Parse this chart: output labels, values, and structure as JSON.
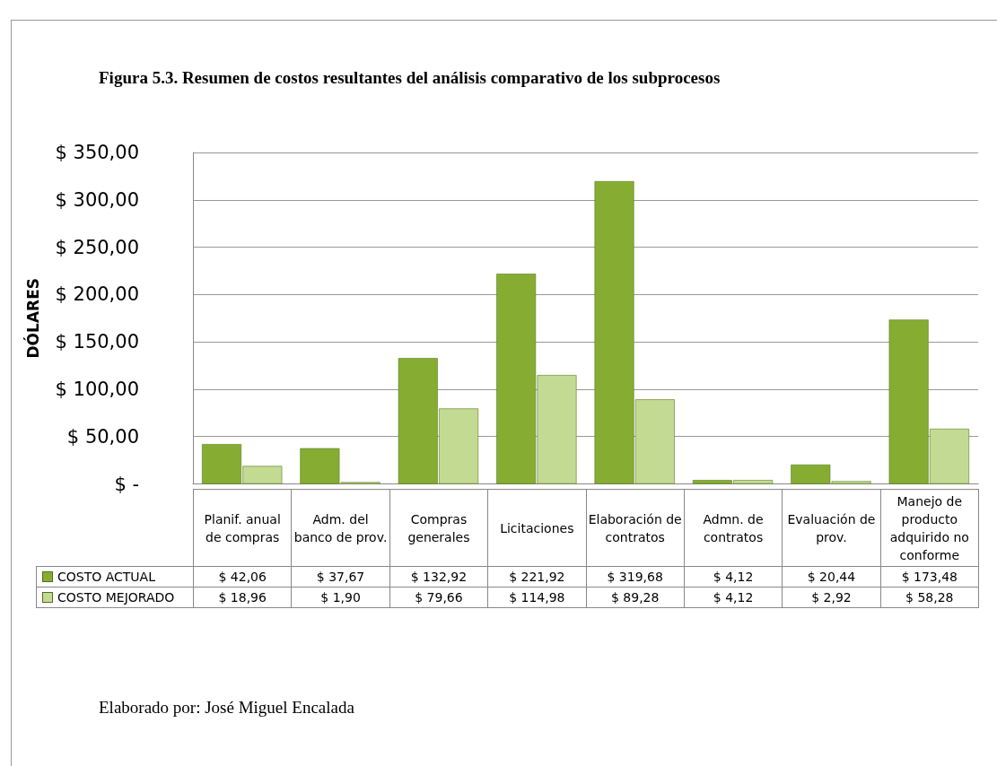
{
  "chart_data": {
    "type": "bar",
    "title": "Figura 5.3. Resumen de costos resultantes del análisis comparativo de los subprocesos",
    "ylabel": "DÓLARES",
    "categories": [
      "Planif. anual de compras",
      "Adm. del banco de prov.",
      "Compras generales",
      "Licitaciones",
      "Elaboración de contratos",
      "Admn. de contratos",
      "Evaluación de prov.",
      "Manejo de producto adquirido no conforme"
    ],
    "series": [
      {
        "name": "COSTO ACTUAL",
        "color": "#86ad32",
        "values": [
          42.06,
          37.67,
          132.92,
          221.92,
          319.68,
          4.12,
          20.44,
          173.48
        ],
        "value_labels": [
          "$ 42,06",
          "$ 37,67",
          "$ 132,92",
          "$ 221,92",
          "$ 319,68",
          "$ 4,12",
          "$ 20,44",
          "$ 173,48"
        ]
      },
      {
        "name": "COSTO MEJORADO",
        "color": "#c3da93",
        "values": [
          18.96,
          1.9,
          79.66,
          114.98,
          89.28,
          4.12,
          2.92,
          58.28
        ],
        "value_labels": [
          "$ 18,96",
          "$ 1,90",
          "$ 79,66",
          "$ 114,98",
          "$ 89,28",
          "$ 4,12",
          "$ 2,92",
          "$ 58,28"
        ]
      }
    ],
    "ylim": [
      0,
      350
    ],
    "yticks": [
      {
        "value": 0,
        "label": "$ -"
      },
      {
        "value": 50,
        "label": "$ 50,00"
      },
      {
        "value": 100,
        "label": "$ 100,00"
      },
      {
        "value": 150,
        "label": "$ 150,00"
      },
      {
        "value": 200,
        "label": "$ 200,00"
      },
      {
        "value": 250,
        "label": "$ 250,00"
      },
      {
        "value": 300,
        "label": "$ 300,00"
      },
      {
        "value": 350,
        "label": "$ 350,00"
      }
    ],
    "grid": "y",
    "legend": "bottom",
    "annotations": [
      "Elaborado por: José Miguel Encalada"
    ]
  }
}
